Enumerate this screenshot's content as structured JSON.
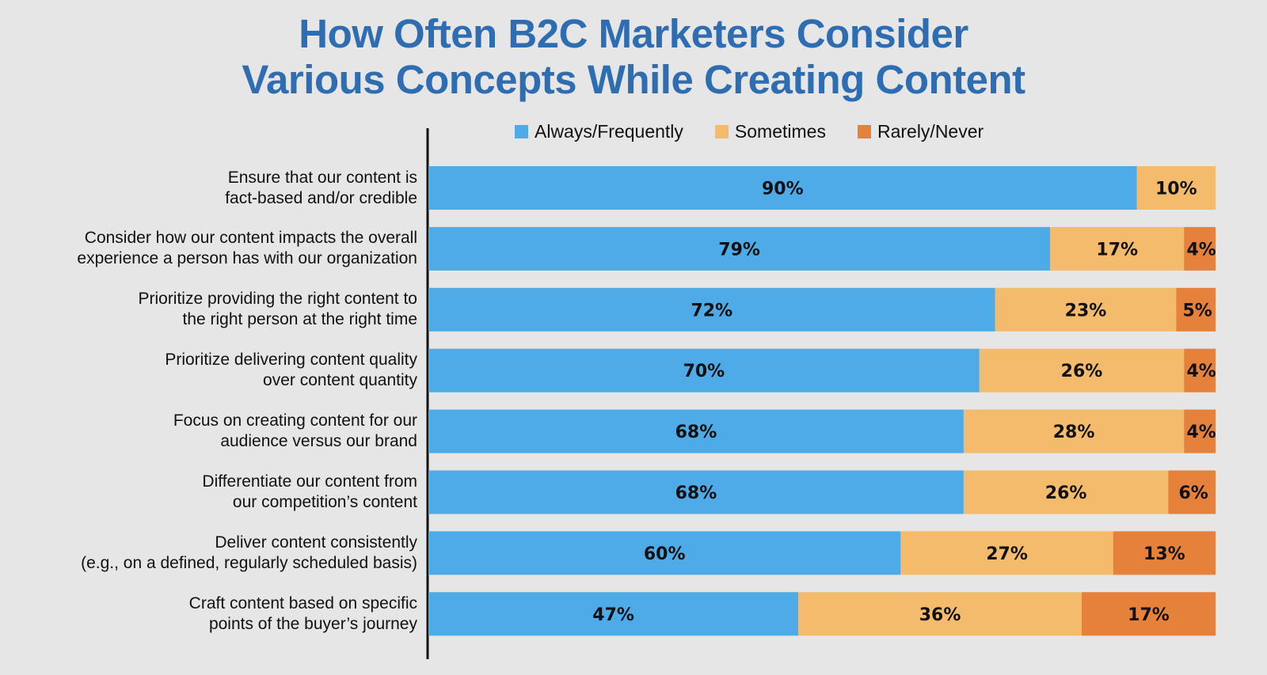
{
  "chart_data": {
    "type": "bar",
    "orientation": "horizontal",
    "stacked": true,
    "title": "How Often B2C Marketers Consider Various Concepts While Creating Content",
    "title_lines": [
      "How Often B2C Marketers Consider",
      "Various Concepts While Creating Content"
    ],
    "categories": [
      "Ensure that our content is fact-based and/or credible",
      "Consider how our content impacts the overall experience a person has with our organization",
      "Prioritize providing the right content to the right person at the right time",
      "Prioritize delivering content quality over content quantity",
      "Focus on creating content for our audience versus our brand",
      "Differentiate our content from our competition’s content",
      "Deliver content consistently (e.g., on a defined, regularly scheduled basis)",
      "Craft content based on specific points of the buyer’s journey"
    ],
    "category_lines": [
      [
        "Ensure that our content is",
        "fact-based and/or credible"
      ],
      [
        "Consider how our content impacts the overall",
        "experience a person has with our organization"
      ],
      [
        "Prioritize providing the right content to",
        "the right person at the right time"
      ],
      [
        "Prioritize delivering content quality",
        "over content quantity"
      ],
      [
        "Focus on creating content for our",
        "audience versus our brand"
      ],
      [
        "Differentiate our content from",
        "our competition’s content"
      ],
      [
        "Deliver content consistently",
        "(e.g., on a defined, regularly scheduled basis)"
      ],
      [
        "Craft content based on specific",
        "points of the buyer’s journey"
      ]
    ],
    "series": [
      {
        "name": "Always/Frequently",
        "color": "#4eabe8",
        "values": [
          90,
          79,
          72,
          70,
          68,
          68,
          60,
          47
        ]
      },
      {
        "name": "Sometimes",
        "color": "#f3bb6b",
        "values": [
          10,
          17,
          23,
          26,
          28,
          26,
          27,
          36
        ]
      },
      {
        "name": "Rarely/Never",
        "color": "#e5813b",
        "values": [
          0,
          4,
          5,
          4,
          4,
          6,
          13,
          17
        ]
      }
    ],
    "value_suffix": "%",
    "xlim": [
      0,
      100
    ],
    "grid": false,
    "legend_position": "top"
  }
}
